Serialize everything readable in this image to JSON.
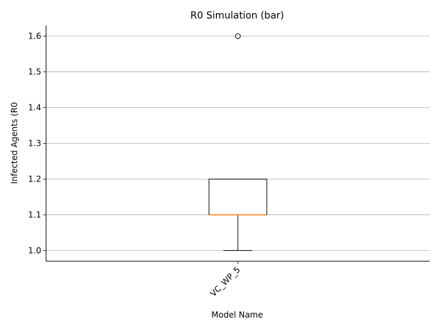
{
  "chart_data": {
    "type": "box",
    "title": "R0 Simulation (bar)",
    "xlabel": "Model Name",
    "ylabel": "Infected Agents (R0",
    "categories": [
      "VC_WP_5"
    ],
    "boxes": [
      {
        "category": "VC_WP_5",
        "whisker_low": 1.0,
        "q1": 1.1,
        "median": 1.1,
        "q3": 1.2,
        "whisker_high": 1.2,
        "outliers": [
          1.6
        ]
      }
    ],
    "ylim": [
      0.97,
      1.63
    ],
    "yticks": [
      "1.0",
      "1.1",
      "1.2",
      "1.3",
      "1.4",
      "1.5",
      "1.6"
    ],
    "grid": "y",
    "colors": {
      "box": "#000000",
      "median": "#ff7f0e",
      "grid": "#b0b0b0"
    }
  }
}
